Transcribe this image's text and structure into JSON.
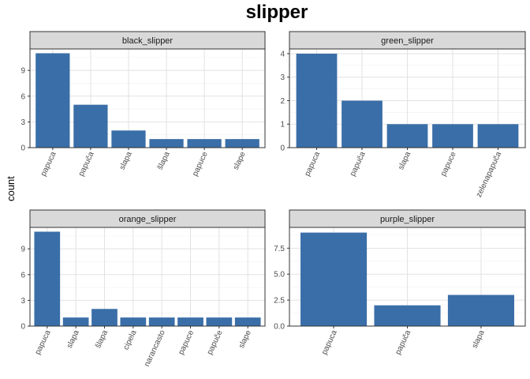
{
  "chart_data": {
    "type": "bar",
    "title": "slipper",
    "ylabel": "count",
    "xlabel": "",
    "bar_color": "#3A6EA8",
    "strip_fill": "#D9D9D9",
    "grid": true,
    "panels": [
      {
        "name": "black_slipper",
        "categories": [
          "papuca",
          "papuča",
          "slapa",
          "šlapa",
          "papuce",
          "slape"
        ],
        "values": [
          11,
          5,
          2,
          1,
          1,
          1
        ],
        "ylim": [
          0,
          11.5
        ],
        "yticks": [
          0,
          3,
          6,
          9
        ],
        "yticklabels": [
          "0",
          "3",
          "6",
          "9"
        ]
      },
      {
        "name": "green_slipper",
        "categories": [
          "papuca",
          "papuča",
          "slapa",
          "papuce",
          "zelenapapuča"
        ],
        "values": [
          4,
          2,
          1,
          1,
          1
        ],
        "ylim": [
          0,
          4.2
        ],
        "yticks": [
          0,
          1,
          2,
          3,
          4
        ],
        "yticklabels": [
          "0",
          "1",
          "2",
          "3",
          "4"
        ]
      },
      {
        "name": "orange_slipper",
        "categories": [
          "papuca",
          "slapa",
          "šlapa",
          "cipela",
          "narancasto",
          "papuce",
          "papuče",
          "slape"
        ],
        "values": [
          11,
          1,
          2,
          1,
          1,
          1,
          1,
          1
        ],
        "ylim": [
          0,
          11.5
        ],
        "yticks": [
          0,
          3,
          6,
          9
        ],
        "yticklabels": [
          "0",
          "3",
          "6",
          "9"
        ]
      },
      {
        "name": "purple_slipper",
        "categories": [
          "papuca",
          "papuča",
          "slapa"
        ],
        "values": [
          9,
          2,
          3
        ],
        "ylim": [
          0,
          9.5
        ],
        "yticks": [
          0,
          2.5,
          5,
          7.5
        ],
        "yticklabels": [
          "0.0",
          "2.5",
          "5.0",
          "7.5"
        ]
      }
    ]
  }
}
